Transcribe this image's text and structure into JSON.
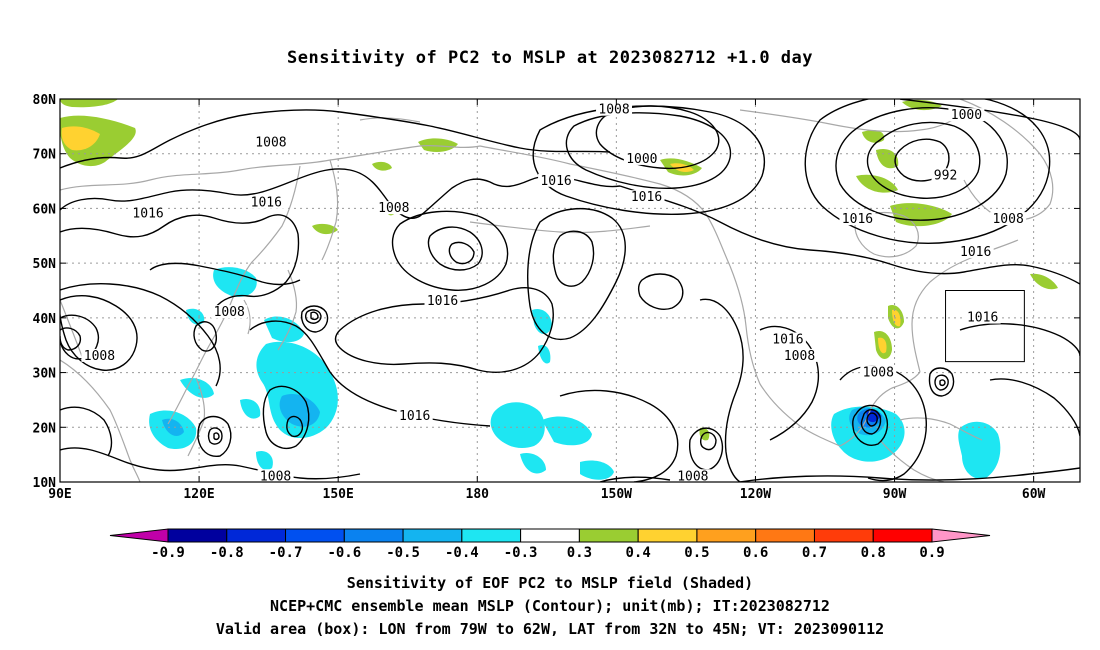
{
  "title": "Sensitivity of PC2 to MSLP at 2023082712 +1.0 day",
  "captions": {
    "line1": "Sensitivity of EOF PC2 to MSLP field (Shaded)",
    "line2": "NCEP+CMC ensemble mean MSLP (Contour); unit(mb); IT:2023082712",
    "line3": "Valid area (box): LON from 79W to 62W, LAT from 32N to 45N; VT: 2023090112"
  },
  "map": {
    "lon_range": [
      90,
      310
    ],
    "lat_range": [
      10,
      80
    ],
    "grid": true,
    "lon_ticks": [
      {
        "lon": 90,
        "label": "90E"
      },
      {
        "lon": 120,
        "label": "120E"
      },
      {
        "lon": 150,
        "label": "150E"
      },
      {
        "lon": 180,
        "label": "180"
      },
      {
        "lon": 210,
        "label": "150W"
      },
      {
        "lon": 240,
        "label": "120W"
      },
      {
        "lon": 270,
        "label": "90W"
      },
      {
        "lon": 300,
        "label": "60W"
      }
    ],
    "lat_ticks": [
      {
        "lat": 10,
        "label": "10N"
      },
      {
        "lat": 20,
        "label": "20N"
      },
      {
        "lat": 30,
        "label": "30N"
      },
      {
        "lat": 40,
        "label": "40N"
      },
      {
        "lat": 50,
        "label": "50N"
      },
      {
        "lat": 60,
        "label": "60N"
      },
      {
        "lat": 70,
        "label": "70N"
      },
      {
        "lat": 80,
        "label": "80N"
      }
    ],
    "valid_box": {
      "lon_min": 281,
      "lon_max": 298,
      "lat_min": 32,
      "lat_max": 45
    },
    "contour_labels": [
      {
        "text": "1008",
        "lon": 135.5,
        "lat": 71.5
      },
      {
        "text": "1008",
        "lon": 209.5,
        "lat": 77.5
      },
      {
        "text": "1000",
        "lon": 215.5,
        "lat": 68.5
      },
      {
        "text": "1000",
        "lon": 285.5,
        "lat": 76.5
      },
      {
        "text": "992",
        "lon": 281,
        "lat": 65.5
      },
      {
        "text": "1016",
        "lon": 197,
        "lat": 64.5
      },
      {
        "text": "1016",
        "lon": 216.5,
        "lat": 61.5
      },
      {
        "text": "1016",
        "lon": 109,
        "lat": 58.5
      },
      {
        "text": "1016",
        "lon": 134.5,
        "lat": 60.5
      },
      {
        "text": "1008",
        "lon": 162,
        "lat": 59.5
      },
      {
        "text": "1016",
        "lon": 262,
        "lat": 57.5
      },
      {
        "text": "1008",
        "lon": 294.5,
        "lat": 57.5
      },
      {
        "text": "1016",
        "lon": 287.5,
        "lat": 51.5
      },
      {
        "text": "1016",
        "lon": 172.5,
        "lat": 42.5
      },
      {
        "text": "1016",
        "lon": 289,
        "lat": 39.5
      },
      {
        "text": "1008",
        "lon": 126.5,
        "lat": 40.5
      },
      {
        "text": "1016",
        "lon": 247,
        "lat": 35.5
      },
      {
        "text": "1008",
        "lon": 249.5,
        "lat": 32.5
      },
      {
        "text": "1008",
        "lon": 98.5,
        "lat": 32.5
      },
      {
        "text": "1008",
        "lon": 266.5,
        "lat": 29.5
      },
      {
        "text": "1016",
        "lon": 166.5,
        "lat": 21.5
      },
      {
        "text": "1008",
        "lon": 136.5,
        "lat": 10.5
      },
      {
        "text": "1008",
        "lon": 226.5,
        "lat": 10.5
      }
    ]
  },
  "colorbar": {
    "labels": [
      "-0.9",
      "-0.8",
      "-0.7",
      "-0.6",
      "-0.5",
      "-0.4",
      "-0.3",
      "0.3",
      "0.4",
      "0.5",
      "0.6",
      "0.7",
      "0.8",
      "0.9"
    ],
    "colors": [
      "#c000a8",
      "#00009e",
      "#0028d8",
      "#0050f0",
      "#0a82f0",
      "#14b4f0",
      "#1ee6f2",
      "#ffffff",
      "#9acd32",
      "#ffd230",
      "#ffa01e",
      "#ff7814",
      "#ff3c0a",
      "#ff0000",
      "#ff96c8"
    ],
    "shaded_colors": {
      "neg_light": "#1ee6f2",
      "neg_mid": "#14b4f0",
      "neg_deep": "#0a82f0",
      "neg_dark": "#0028d8",
      "pos_green": "#9acd32",
      "pos_yellow": "#ffd230",
      "pos_orange": "#ffa01e"
    }
  }
}
